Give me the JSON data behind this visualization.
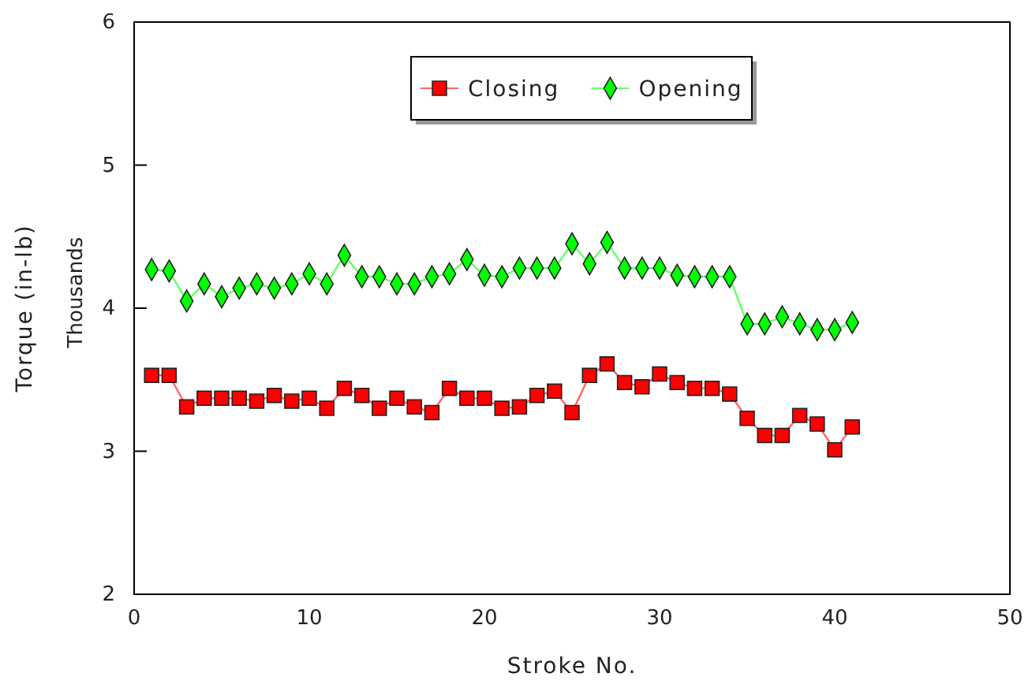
{
  "chart_data": {
    "type": "line",
    "xlabel": "Stroke No.",
    "ylabel": "Torque (in-lb)",
    "annotations": [
      "Thousands"
    ],
    "x": [
      1,
      2,
      3,
      4,
      5,
      6,
      7,
      8,
      9,
      10,
      11,
      12,
      13,
      14,
      15,
      16,
      17,
      18,
      19,
      20,
      21,
      22,
      23,
      24,
      25,
      26,
      27,
      28,
      29,
      30,
      31,
      32,
      33,
      34,
      35,
      36,
      37,
      38,
      39,
      40,
      41
    ],
    "series": [
      {
        "name": "Closing",
        "color": "#ff0000",
        "marker": "square",
        "values": [
          3.53,
          3.53,
          3.31,
          3.37,
          3.37,
          3.37,
          3.35,
          3.39,
          3.35,
          3.37,
          3.3,
          3.44,
          3.39,
          3.3,
          3.37,
          3.31,
          3.27,
          3.44,
          3.37,
          3.37,
          3.3,
          3.31,
          3.39,
          3.42,
          3.27,
          3.53,
          3.61,
          3.48,
          3.45,
          3.54,
          3.48,
          3.44,
          3.44,
          3.4,
          3.23,
          3.11,
          3.11,
          3.25,
          3.19,
          3.01,
          3.17
        ]
      },
      {
        "name": "Opening",
        "color": "#00ff00",
        "marker": "diamond",
        "values": [
          4.27,
          4.26,
          4.05,
          4.17,
          4.08,
          4.14,
          4.17,
          4.14,
          4.17,
          4.24,
          4.17,
          4.37,
          4.22,
          4.22,
          4.17,
          4.17,
          4.22,
          4.24,
          4.34,
          4.23,
          4.22,
          4.28,
          4.28,
          4.28,
          4.45,
          4.31,
          4.46,
          4.28,
          4.28,
          4.28,
          4.23,
          4.22,
          4.22,
          4.22,
          3.89,
          3.89,
          3.94,
          3.89,
          3.85,
          3.85,
          3.9
        ]
      }
    ],
    "xlim": [
      0,
      50
    ],
    "xticks": [
      0,
      10,
      20,
      30,
      40,
      50
    ],
    "ylim": [
      2,
      6
    ],
    "yticks": [
      2,
      3,
      4,
      5,
      6
    ],
    "legend": "top"
  }
}
